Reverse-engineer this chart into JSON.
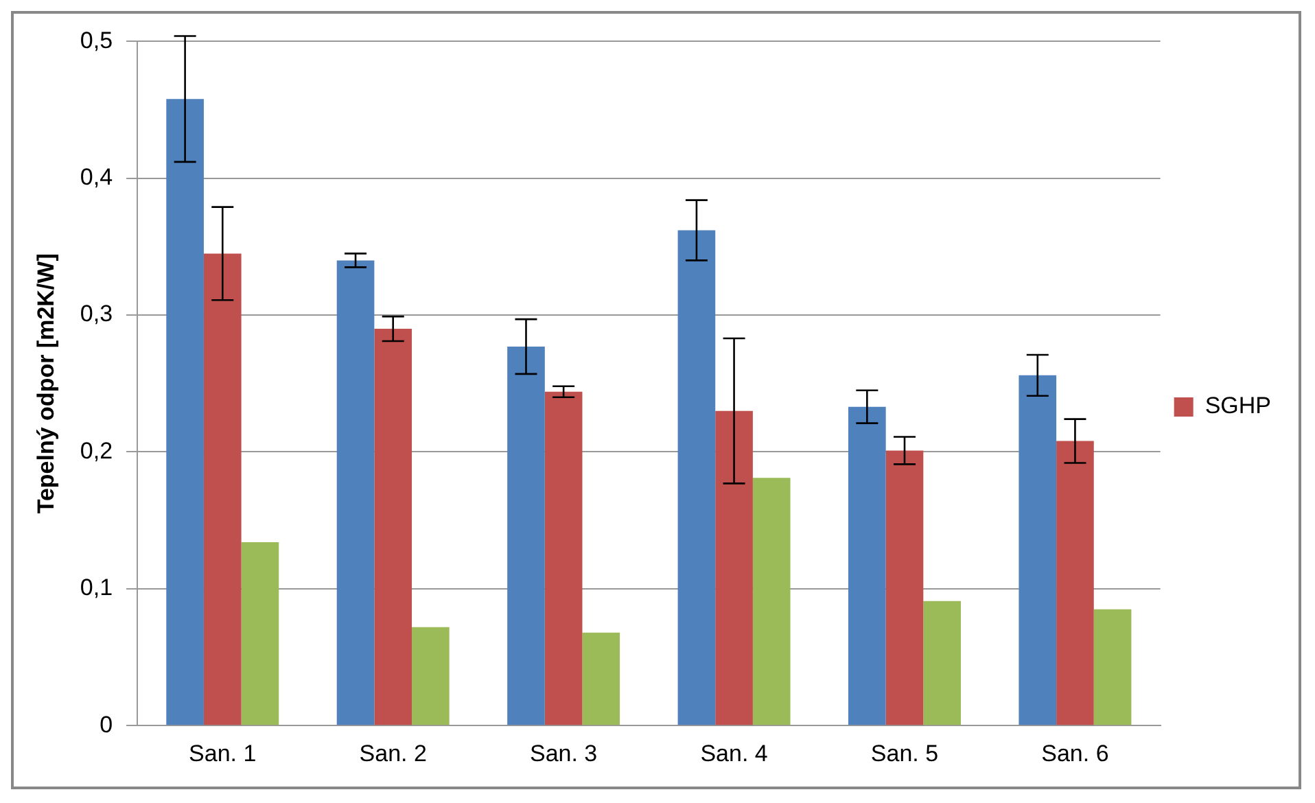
{
  "chart_data": {
    "type": "bar",
    "ylabel": "Tepelný odpor [m2K/W]",
    "categories": [
      "San. 1",
      "San. 2",
      "San. 3",
      "San. 4",
      "San. 5",
      "San. 6"
    ],
    "series": [
      {
        "color": "#4f81bd",
        "values": [
          0.458,
          0.34,
          0.277,
          0.362,
          0.233,
          0.256
        ],
        "errors": [
          0.046,
          0.005,
          0.02,
          0.022,
          0.012,
          0.015
        ]
      },
      {
        "name": "SGHP",
        "color": "#c0504d",
        "values": [
          0.345,
          0.29,
          0.244,
          0.23,
          0.201,
          0.208
        ],
        "errors": [
          0.034,
          0.009,
          0.004,
          0.053,
          0.01,
          0.016
        ]
      },
      {
        "color": "#9bbb59",
        "values": [
          0.134,
          0.072,
          0.068,
          0.181,
          0.091,
          0.085
        ]
      }
    ],
    "ylim": [
      0,
      0.5
    ],
    "yticks": [
      {
        "value": 0,
        "label": "0"
      },
      {
        "value": 0.1,
        "label": "0,1"
      },
      {
        "value": 0.2,
        "label": "0,2"
      },
      {
        "value": 0.3,
        "label": "0,3"
      },
      {
        "value": 0.4,
        "label": "0,4"
      },
      {
        "value": 0.5,
        "label": "0,5"
      }
    ],
    "grid": "y",
    "legend": "right"
  }
}
